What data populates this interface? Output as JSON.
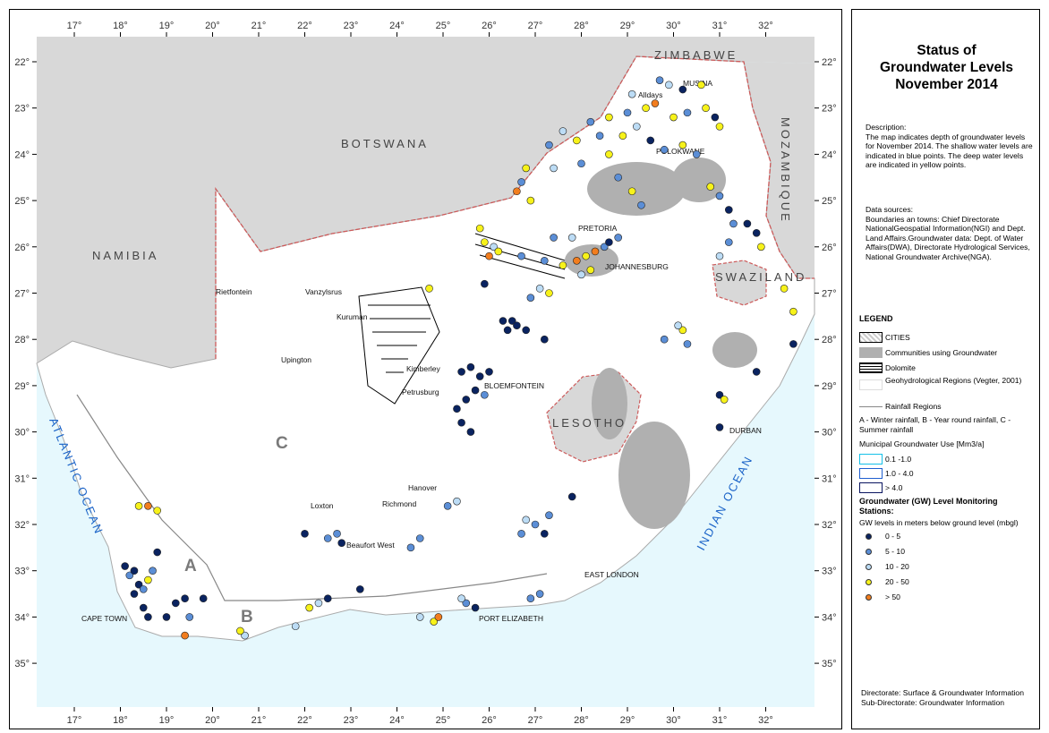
{
  "map_title": "Status of Groundwater Levels November 2014",
  "title_lines": [
    "Status of",
    "Groundwater Levels",
    "November 2014"
  ],
  "description": {
    "heading": "Description:",
    "text": "The map indicates depth of groundwater levels for November 2014. The shallow water levels are indicated in blue points. The deep water levels are indicated in yellow points."
  },
  "data_sources": {
    "heading": "Data sources:",
    "text": "Boundaries an towns: Chief Directorate NationalGeospatial Information(NGI) and Dept. Land Affairs.Groundwater data: Dept. of Water Affairs(DWA), Directorate Hydrological Services, National Groundwater Archive(NGA)."
  },
  "legend": {
    "title": "LEGEND",
    "cities": "CITIES",
    "communities": "Communities using Groundwater",
    "dolomite": "Dolomite",
    "geohydro": "Geohydrological Regions (Vegter, 2001)",
    "rainfall": "Rainfall Regions",
    "rainfall_note": "A - Winter rainfall, B - Year round rainfall, C - Summer rainfall",
    "municipal_title": "Municipal Groundwater Use [Mm3/a]",
    "municipal": [
      {
        "label": "0.1 -1.0",
        "color": "#14c0e8"
      },
      {
        "label": "1.0 - 4.0",
        "color": "#1f5fd0"
      },
      {
        "label": "> 4.0",
        "color": "#0a1560"
      }
    ],
    "gw_title": "Groundwater (GW) Level Monitoring Stations:",
    "gw_subtitle": "GW levels in meters below ground level (mbgl)",
    "gw_classes": [
      {
        "label": "0 - 5",
        "color": "#0a2360"
      },
      {
        "label": "5 - 10",
        "color": "#5b8ed6"
      },
      {
        "label": "10 - 20",
        "color": "#bcdcf5"
      },
      {
        "label": "20 - 50",
        "color": "#f7f21a"
      },
      {
        "label": "> 50",
        "color": "#f27d1e"
      }
    ]
  },
  "footer": {
    "line1": "Directorate: Surface & Groundwater Information",
    "line2": "Sub-Directorate: Groundwater Information"
  },
  "axes": {
    "longitude_ticks": [
      "17°",
      "18°",
      "19°",
      "20°",
      "21°",
      "22°",
      "23°",
      "24°",
      "25°",
      "26°",
      "27°",
      "28°",
      "29°",
      "30°",
      "31°",
      "32°"
    ],
    "latitude_ticks": [
      "22°",
      "23°",
      "24°",
      "25°",
      "26°",
      "27°",
      "28°",
      "29°",
      "30°",
      "31°",
      "32°",
      "33°",
      "34°",
      "35°"
    ]
  },
  "countries": [
    "BOTSWANA",
    "NAMIBIA",
    "ZIMBABWE",
    "MOZAMBIQUE",
    "SWAZILAND",
    "LESOTHO"
  ],
  "oceans": [
    "ATLANTIC OCEAN",
    "INDIAN OCEAN"
  ],
  "rainfall_regions": [
    "A",
    "B",
    "C"
  ],
  "towns": [
    "MUSINA",
    "Alldays",
    "POLOKWANE",
    "PRETORIA",
    "JOHANNESBURG",
    "Rietfontein",
    "Vanzylsrus",
    "Kuruman",
    "Upington",
    "Kimberley",
    "Petrusburg",
    "BLOEMFONTEIN",
    "DURBAN",
    "Hanover",
    "Richmond",
    "Loxton",
    "Beaufort West",
    "EAST LONDON",
    "CAPE TOWN",
    "PORT ELIZABETH"
  ],
  "colors": {
    "sea": "#e6f8fd",
    "neighbour": "#d8d8d8",
    "border": "#cc5a5a",
    "coast": "#aaaaaa"
  },
  "stations": [
    {
      "lon": 29.7,
      "lat": -22.4,
      "c": 1
    },
    {
      "lon": 29.9,
      "lat": -22.5,
      "c": 2
    },
    {
      "lon": 30.2,
      "lat": -22.6,
      "c": 0
    },
    {
      "lon": 30.6,
      "lat": -22.5,
      "c": 3
    },
    {
      "lon": 29.1,
      "lat": -22.7,
      "c": 2
    },
    {
      "lon": 29.6,
      "lat": -22.9,
      "c": 4
    },
    {
      "lon": 29.4,
      "lat": -23.0,
      "c": 3
    },
    {
      "lon": 29.0,
      "lat": -23.1,
      "c": 1
    },
    {
      "lon": 28.6,
      "lat": -23.2,
      "c": 3
    },
    {
      "lon": 28.2,
      "lat": -23.3,
      "c": 1
    },
    {
      "lon": 30.0,
      "lat": -23.2,
      "c": 3
    },
    {
      "lon": 30.3,
      "lat": -23.1,
      "c": 1
    },
    {
      "lon": 30.7,
      "lat": -23.0,
      "c": 3
    },
    {
      "lon": 30.9,
      "lat": -23.2,
      "c": 0
    },
    {
      "lon": 31.0,
      "lat": -23.4,
      "c": 3
    },
    {
      "lon": 29.2,
      "lat": -23.4,
      "c": 2
    },
    {
      "lon": 28.9,
      "lat": -23.6,
      "c": 3
    },
    {
      "lon": 28.4,
      "lat": -23.6,
      "c": 1
    },
    {
      "lon": 27.9,
      "lat": -23.7,
      "c": 3
    },
    {
      "lon": 27.6,
      "lat": -23.5,
      "c": 2
    },
    {
      "lon": 27.3,
      "lat": -23.8,
      "c": 1
    },
    {
      "lon": 29.5,
      "lat": -23.7,
      "c": 0
    },
    {
      "lon": 29.8,
      "lat": -23.9,
      "c": 1
    },
    {
      "lon": 30.2,
      "lat": -23.8,
      "c": 3
    },
    {
      "lon": 30.5,
      "lat": -24.0,
      "c": 1
    },
    {
      "lon": 28.6,
      "lat": -24.0,
      "c": 3
    },
    {
      "lon": 28.0,
      "lat": -24.2,
      "c": 1
    },
    {
      "lon": 27.4,
      "lat": -24.3,
      "c": 2
    },
    {
      "lon": 26.8,
      "lat": -24.3,
      "c": 3
    },
    {
      "lon": 26.7,
      "lat": -24.6,
      "c": 1
    },
    {
      "lon": 26.6,
      "lat": -24.8,
      "c": 4
    },
    {
      "lon": 26.9,
      "lat": -25.0,
      "c": 3
    },
    {
      "lon": 28.8,
      "lat": -24.5,
      "c": 1
    },
    {
      "lon": 29.1,
      "lat": -24.8,
      "c": 3
    },
    {
      "lon": 29.3,
      "lat": -25.1,
      "c": 1
    },
    {
      "lon": 30.8,
      "lat": -24.7,
      "c": 3
    },
    {
      "lon": 31.0,
      "lat": -24.9,
      "c": 1
    },
    {
      "lon": 31.2,
      "lat": -25.2,
      "c": 0
    },
    {
      "lon": 31.3,
      "lat": -25.5,
      "c": 1
    },
    {
      "lon": 31.6,
      "lat": -25.5,
      "c": 0
    },
    {
      "lon": 31.8,
      "lat": -25.7,
      "c": 0
    },
    {
      "lon": 31.2,
      "lat": -25.9,
      "c": 1
    },
    {
      "lon": 31.0,
      "lat": -26.2,
      "c": 2
    },
    {
      "lon": 31.9,
      "lat": -26.0,
      "c": 3
    },
    {
      "lon": 25.8,
      "lat": -25.6,
      "c": 3
    },
    {
      "lon": 25.9,
      "lat": -25.9,
      "c": 3
    },
    {
      "lon": 26.1,
      "lat": -26.0,
      "c": 2
    },
    {
      "lon": 26.0,
      "lat": -26.2,
      "c": 4
    },
    {
      "lon": 26.2,
      "lat": -26.1,
      "c": 3
    },
    {
      "lon": 26.7,
      "lat": -26.2,
      "c": 1
    },
    {
      "lon": 27.2,
      "lat": -26.3,
      "c": 1
    },
    {
      "lon": 27.6,
      "lat": -26.4,
      "c": 3
    },
    {
      "lon": 27.9,
      "lat": -26.3,
      "c": 4
    },
    {
      "lon": 28.1,
      "lat": -26.2,
      "c": 3
    },
    {
      "lon": 28.3,
      "lat": -26.1,
      "c": 4
    },
    {
      "lon": 28.5,
      "lat": -26.0,
      "c": 1
    },
    {
      "lon": 28.2,
      "lat": -26.5,
      "c": 3
    },
    {
      "lon": 28.0,
      "lat": -26.6,
      "c": 2
    },
    {
      "lon": 28.6,
      "lat": -25.9,
      "c": 0
    },
    {
      "lon": 28.8,
      "lat": -25.8,
      "c": 1
    },
    {
      "lon": 27.8,
      "lat": -25.8,
      "c": 2
    },
    {
      "lon": 27.4,
      "lat": -25.8,
      "c": 1
    },
    {
      "lon": 27.1,
      "lat": -26.9,
      "c": 2
    },
    {
      "lon": 27.3,
      "lat": -27.0,
      "c": 3
    },
    {
      "lon": 26.9,
      "lat": -27.1,
      "c": 1
    },
    {
      "lon": 25.9,
      "lat": -26.8,
      "c": 0
    },
    {
      "lon": 24.7,
      "lat": -26.9,
      "c": 3
    },
    {
      "lon": 26.3,
      "lat": -27.6,
      "c": 0
    },
    {
      "lon": 26.5,
      "lat": -27.6,
      "c": 0
    },
    {
      "lon": 26.4,
      "lat": -27.8,
      "c": 0
    },
    {
      "lon": 26.6,
      "lat": -27.7,
      "c": 0
    },
    {
      "lon": 26.8,
      "lat": -27.8,
      "c": 0
    },
    {
      "lon": 27.2,
      "lat": -28.0,
      "c": 0
    },
    {
      "lon": 25.4,
      "lat": -28.7,
      "c": 0
    },
    {
      "lon": 25.6,
      "lat": -28.6,
      "c": 0
    },
    {
      "lon": 25.8,
      "lat": -28.8,
      "c": 0
    },
    {
      "lon": 26.0,
      "lat": -28.7,
      "c": 0
    },
    {
      "lon": 25.7,
      "lat": -29.1,
      "c": 0
    },
    {
      "lon": 25.9,
      "lat": -29.2,
      "c": 1
    },
    {
      "lon": 25.5,
      "lat": -29.3,
      "c": 0
    },
    {
      "lon": 25.3,
      "lat": -29.5,
      "c": 0
    },
    {
      "lon": 25.4,
      "lat": -29.8,
      "c": 0
    },
    {
      "lon": 25.6,
      "lat": -30.0,
      "c": 0
    },
    {
      "lon": 29.8,
      "lat": -28.0,
      "c": 1
    },
    {
      "lon": 30.2,
      "lat": -27.8,
      "c": 3
    },
    {
      "lon": 30.3,
      "lat": -28.1,
      "c": 1
    },
    {
      "lon": 30.1,
      "lat": -27.7,
      "c": 2
    },
    {
      "lon": 31.8,
      "lat": -28.7,
      "c": 0
    },
    {
      "lon": 32.6,
      "lat": -28.1,
      "c": 0
    },
    {
      "lon": 32.4,
      "lat": -26.9,
      "c": 3
    },
    {
      "lon": 32.6,
      "lat": -27.4,
      "c": 3
    },
    {
      "lon": 31.0,
      "lat": -29.2,
      "c": 0
    },
    {
      "lon": 31.1,
      "lat": -29.3,
      "c": 3
    },
    {
      "lon": 31.0,
      "lat": -29.9,
      "c": 0
    },
    {
      "lon": 27.8,
      "lat": -31.4,
      "c": 0
    },
    {
      "lon": 26.8,
      "lat": -31.9,
      "c": 2
    },
    {
      "lon": 27.0,
      "lat": -32.0,
      "c": 1
    },
    {
      "lon": 27.3,
      "lat": -31.8,
      "c": 1
    },
    {
      "lon": 26.7,
      "lat": -32.2,
      "c": 1
    },
    {
      "lon": 27.2,
      "lat": -32.2,
      "c": 0
    },
    {
      "lon": 27.1,
      "lat": -33.5,
      "c": 1
    },
    {
      "lon": 26.9,
      "lat": -33.6,
      "c": 1
    },
    {
      "lon": 18.6,
      "lat": -31.6,
      "c": 4
    },
    {
      "lon": 18.4,
      "lat": -31.6,
      "c": 3
    },
    {
      "lon": 18.8,
      "lat": -31.7,
      "c": 3
    },
    {
      "lon": 18.1,
      "lat": -32.9,
      "c": 0
    },
    {
      "lon": 18.2,
      "lat": -33.1,
      "c": 1
    },
    {
      "lon": 18.3,
      "lat": -33.0,
      "c": 0
    },
    {
      "lon": 18.4,
      "lat": -33.3,
      "c": 0
    },
    {
      "lon": 18.5,
      "lat": -33.4,
      "c": 1
    },
    {
      "lon": 18.3,
      "lat": -33.5,
      "c": 0
    },
    {
      "lon": 18.6,
      "lat": -33.2,
      "c": 3
    },
    {
      "lon": 18.7,
      "lat": -33.0,
      "c": 1
    },
    {
      "lon": 18.5,
      "lat": -33.8,
      "c": 0
    },
    {
      "lon": 18.6,
      "lat": -34.0,
      "c": 0
    },
    {
      "lon": 18.8,
      "lat": -32.6,
      "c": 0
    },
    {
      "lon": 19.0,
      "lat": -34.0,
      "c": 0
    },
    {
      "lon": 19.2,
      "lat": -33.7,
      "c": 0
    },
    {
      "lon": 19.4,
      "lat": -33.6,
      "c": 0
    },
    {
      "lon": 19.5,
      "lat": -34.0,
      "c": 1
    },
    {
      "lon": 19.4,
      "lat": -34.4,
      "c": 4
    },
    {
      "lon": 19.8,
      "lat": -33.6,
      "c": 0
    },
    {
      "lon": 20.7,
      "lat": -34.4,
      "c": 2
    },
    {
      "lon": 20.6,
      "lat": -34.3,
      "c": 3
    },
    {
      "lon": 22.1,
      "lat": -33.8,
      "c": 3
    },
    {
      "lon": 22.3,
      "lat": -33.7,
      "c": 2
    },
    {
      "lon": 22.5,
      "lat": -33.6,
      "c": 0
    },
    {
      "lon": 22.5,
      "lat": -32.3,
      "c": 1
    },
    {
      "lon": 22.7,
      "lat": -32.2,
      "c": 1
    },
    {
      "lon": 22.8,
      "lat": -32.4,
      "c": 0
    },
    {
      "lon": 24.3,
      "lat": -32.5,
      "c": 1
    },
    {
      "lon": 24.5,
      "lat": -32.3,
      "c": 1
    },
    {
      "lon": 25.1,
      "lat": -31.6,
      "c": 1
    },
    {
      "lon": 25.3,
      "lat": -31.5,
      "c": 2
    },
    {
      "lon": 24.5,
      "lat": -34.0,
      "c": 2
    },
    {
      "lon": 24.8,
      "lat": -34.1,
      "c": 3
    },
    {
      "lon": 24.9,
      "lat": -34.0,
      "c": 4
    },
    {
      "lon": 25.5,
      "lat": -33.7,
      "c": 1
    },
    {
      "lon": 25.7,
      "lat": -33.8,
      "c": 0
    },
    {
      "lon": 25.4,
      "lat": -33.6,
      "c": 2
    },
    {
      "lon": 21.8,
      "lat": -34.2,
      "c": 2
    },
    {
      "lon": 23.2,
      "lat": -33.4,
      "c": 0
    },
    {
      "lon": 22.0,
      "lat": -32.2,
      "c": 0
    }
  ]
}
